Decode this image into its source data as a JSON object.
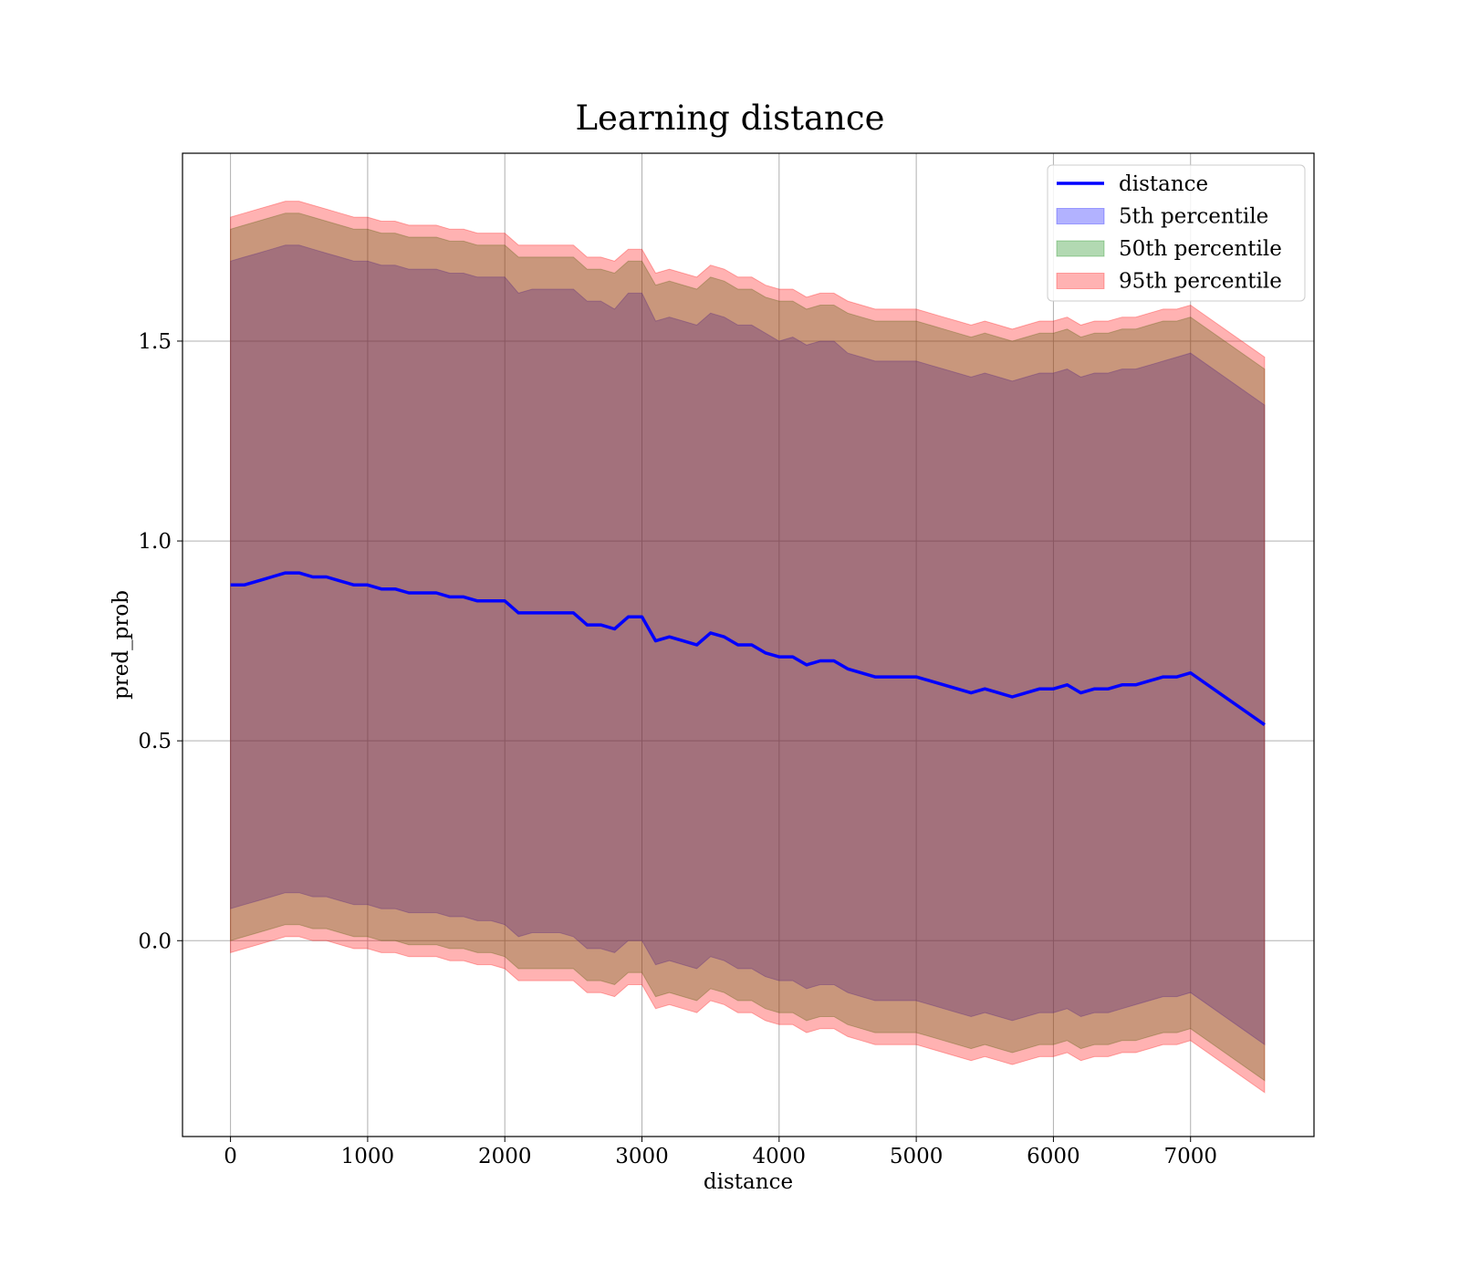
{
  "chart_data": {
    "type": "line",
    "title": "Learning distance",
    "xlabel": "distance",
    "ylabel": "pred_prob",
    "xlim": [
      -350,
      7900
    ],
    "ylim": [
      -0.49,
      1.97
    ],
    "grid": true,
    "legend_position": "upper right",
    "x_ticks": [
      0,
      1000,
      2000,
      3000,
      4000,
      5000,
      6000,
      7000
    ],
    "x_tick_labels": [
      "0",
      "1000",
      "2000",
      "3000",
      "4000",
      "5000",
      "6000",
      "7000"
    ],
    "y_ticks": [
      0.0,
      0.5,
      1.0,
      1.5
    ],
    "y_tick_labels": [
      "0.0",
      "0.5",
      "1.0",
      "1.5"
    ],
    "x": [
      0,
      100,
      200,
      300,
      400,
      500,
      600,
      700,
      800,
      900,
      1000,
      1100,
      1200,
      1300,
      1400,
      1500,
      1600,
      1700,
      1800,
      1900,
      2000,
      2100,
      2200,
      2300,
      2400,
      2500,
      2600,
      2700,
      2800,
      2900,
      3000,
      3100,
      3200,
      3300,
      3400,
      3500,
      3600,
      3700,
      3800,
      3900,
      4000,
      4100,
      4200,
      4300,
      4400,
      4500,
      4600,
      4700,
      4800,
      4900,
      5000,
      5100,
      5200,
      5300,
      5400,
      5500,
      5600,
      5700,
      5800,
      5900,
      6000,
      6100,
      6200,
      6300,
      6400,
      6500,
      6600,
      6700,
      6800,
      6900,
      7000,
      7540
    ],
    "series": [
      {
        "name": "distance",
        "kind": "line",
        "color": "#0000ff",
        "values": [
          0.89,
          0.89,
          0.9,
          0.91,
          0.92,
          0.92,
          0.91,
          0.91,
          0.9,
          0.89,
          0.89,
          0.88,
          0.88,
          0.87,
          0.87,
          0.87,
          0.86,
          0.86,
          0.85,
          0.85,
          0.85,
          0.82,
          0.82,
          0.82,
          0.82,
          0.82,
          0.79,
          0.79,
          0.78,
          0.81,
          0.81,
          0.75,
          0.76,
          0.75,
          0.74,
          0.77,
          0.76,
          0.74,
          0.74,
          0.72,
          0.71,
          0.71,
          0.69,
          0.7,
          0.7,
          0.68,
          0.67,
          0.66,
          0.66,
          0.66,
          0.66,
          0.65,
          0.64,
          0.63,
          0.62,
          0.63,
          0.62,
          0.61,
          0.62,
          0.63,
          0.63,
          0.64,
          0.62,
          0.63,
          0.63,
          0.64,
          0.64,
          0.65,
          0.66,
          0.66,
          0.67,
          0.54
        ]
      },
      {
        "name": "5th percentile",
        "kind": "band",
        "color": "#0000ff",
        "upper": [
          1.7,
          1.71,
          1.72,
          1.73,
          1.74,
          1.74,
          1.73,
          1.72,
          1.71,
          1.7,
          1.7,
          1.69,
          1.69,
          1.68,
          1.68,
          1.68,
          1.67,
          1.67,
          1.66,
          1.66,
          1.66,
          1.62,
          1.63,
          1.63,
          1.63,
          1.63,
          1.6,
          1.6,
          1.58,
          1.62,
          1.62,
          1.55,
          1.56,
          1.55,
          1.54,
          1.57,
          1.56,
          1.54,
          1.54,
          1.52,
          1.5,
          1.51,
          1.49,
          1.5,
          1.5,
          1.47,
          1.46,
          1.45,
          1.45,
          1.45,
          1.45,
          1.44,
          1.43,
          1.42,
          1.41,
          1.42,
          1.41,
          1.4,
          1.41,
          1.42,
          1.42,
          1.43,
          1.41,
          1.42,
          1.42,
          1.43,
          1.43,
          1.44,
          1.45,
          1.46,
          1.47,
          1.34
        ],
        "lower": [
          0.08,
          0.09,
          0.1,
          0.11,
          0.12,
          0.12,
          0.11,
          0.11,
          0.1,
          0.09,
          0.09,
          0.08,
          0.08,
          0.07,
          0.07,
          0.07,
          0.06,
          0.06,
          0.05,
          0.05,
          0.04,
          0.01,
          0.02,
          0.02,
          0.02,
          0.01,
          -0.02,
          -0.02,
          -0.03,
          0.0,
          0.0,
          -0.06,
          -0.05,
          -0.06,
          -0.07,
          -0.04,
          -0.05,
          -0.07,
          -0.07,
          -0.09,
          -0.1,
          -0.1,
          -0.12,
          -0.11,
          -0.11,
          -0.13,
          -0.14,
          -0.15,
          -0.15,
          -0.15,
          -0.15,
          -0.16,
          -0.17,
          -0.18,
          -0.19,
          -0.18,
          -0.19,
          -0.2,
          -0.19,
          -0.18,
          -0.18,
          -0.17,
          -0.19,
          -0.18,
          -0.18,
          -0.17,
          -0.16,
          -0.15,
          -0.14,
          -0.14,
          -0.13,
          -0.26
        ]
      },
      {
        "name": "50th percentile",
        "kind": "band",
        "color": "#008000",
        "upper": [
          1.78,
          1.79,
          1.8,
          1.81,
          1.82,
          1.82,
          1.81,
          1.8,
          1.79,
          1.78,
          1.78,
          1.77,
          1.77,
          1.76,
          1.76,
          1.76,
          1.75,
          1.75,
          1.74,
          1.74,
          1.74,
          1.71,
          1.71,
          1.71,
          1.71,
          1.71,
          1.68,
          1.68,
          1.67,
          1.7,
          1.7,
          1.64,
          1.65,
          1.64,
          1.63,
          1.66,
          1.65,
          1.63,
          1.63,
          1.61,
          1.6,
          1.6,
          1.58,
          1.59,
          1.59,
          1.57,
          1.56,
          1.55,
          1.55,
          1.55,
          1.55,
          1.54,
          1.53,
          1.52,
          1.51,
          1.52,
          1.51,
          1.5,
          1.51,
          1.52,
          1.52,
          1.53,
          1.51,
          1.52,
          1.52,
          1.53,
          1.53,
          1.54,
          1.55,
          1.55,
          1.56,
          1.43
        ],
        "lower": [
          0.0,
          0.01,
          0.02,
          0.03,
          0.04,
          0.04,
          0.03,
          0.03,
          0.02,
          0.01,
          0.01,
          0.0,
          0.0,
          -0.01,
          -0.01,
          -0.01,
          -0.02,
          -0.02,
          -0.03,
          -0.03,
          -0.04,
          -0.07,
          -0.07,
          -0.07,
          -0.07,
          -0.07,
          -0.1,
          -0.1,
          -0.11,
          -0.08,
          -0.08,
          -0.14,
          -0.13,
          -0.14,
          -0.15,
          -0.12,
          -0.13,
          -0.15,
          -0.15,
          -0.17,
          -0.18,
          -0.18,
          -0.2,
          -0.19,
          -0.19,
          -0.21,
          -0.22,
          -0.23,
          -0.23,
          -0.23,
          -0.23,
          -0.24,
          -0.25,
          -0.26,
          -0.27,
          -0.26,
          -0.27,
          -0.28,
          -0.27,
          -0.26,
          -0.26,
          -0.25,
          -0.27,
          -0.26,
          -0.26,
          -0.25,
          -0.25,
          -0.24,
          -0.23,
          -0.23,
          -0.22,
          -0.35
        ]
      },
      {
        "name": "95th percentile",
        "kind": "band",
        "color": "#ff0000",
        "upper": [
          1.81,
          1.82,
          1.83,
          1.84,
          1.85,
          1.85,
          1.84,
          1.83,
          1.82,
          1.81,
          1.81,
          1.8,
          1.8,
          1.79,
          1.79,
          1.79,
          1.78,
          1.78,
          1.77,
          1.77,
          1.77,
          1.74,
          1.74,
          1.74,
          1.74,
          1.74,
          1.71,
          1.71,
          1.7,
          1.73,
          1.73,
          1.67,
          1.68,
          1.67,
          1.66,
          1.69,
          1.68,
          1.66,
          1.66,
          1.64,
          1.63,
          1.63,
          1.61,
          1.62,
          1.62,
          1.6,
          1.59,
          1.58,
          1.58,
          1.58,
          1.58,
          1.57,
          1.56,
          1.55,
          1.54,
          1.55,
          1.54,
          1.53,
          1.54,
          1.55,
          1.55,
          1.56,
          1.54,
          1.55,
          1.55,
          1.56,
          1.56,
          1.57,
          1.58,
          1.58,
          1.59,
          1.46
        ],
        "lower": [
          -0.03,
          -0.02,
          -0.01,
          0.0,
          0.01,
          0.01,
          0.0,
          0.0,
          -0.01,
          -0.02,
          -0.02,
          -0.03,
          -0.03,
          -0.04,
          -0.04,
          -0.04,
          -0.05,
          -0.05,
          -0.06,
          -0.06,
          -0.07,
          -0.1,
          -0.1,
          -0.1,
          -0.1,
          -0.1,
          -0.13,
          -0.13,
          -0.14,
          -0.11,
          -0.11,
          -0.17,
          -0.16,
          -0.17,
          -0.18,
          -0.15,
          -0.16,
          -0.18,
          -0.18,
          -0.2,
          -0.21,
          -0.21,
          -0.23,
          -0.22,
          -0.22,
          -0.24,
          -0.25,
          -0.26,
          -0.26,
          -0.26,
          -0.26,
          -0.27,
          -0.28,
          -0.29,
          -0.3,
          -0.29,
          -0.3,
          -0.31,
          -0.3,
          -0.29,
          -0.29,
          -0.28,
          -0.3,
          -0.29,
          -0.29,
          -0.28,
          -0.28,
          -0.27,
          -0.26,
          -0.26,
          -0.25,
          -0.38
        ]
      }
    ]
  }
}
